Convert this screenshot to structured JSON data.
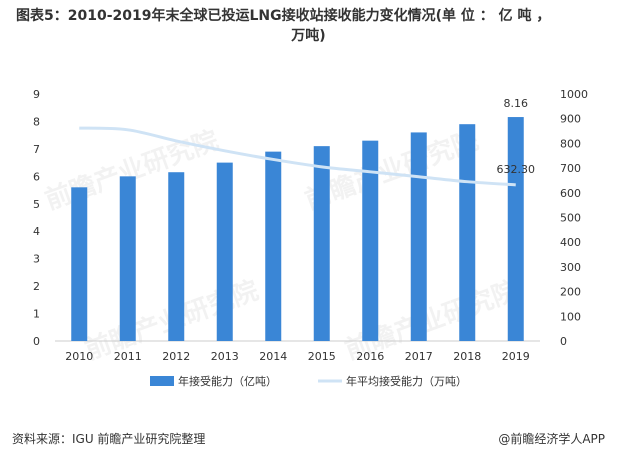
{
  "title": {
    "line1": "图表5：2010-2019年末全球已投运LNG接收站接收能力变化情况(单 位 ： 亿 吨 ，",
    "line2": "万吨)"
  },
  "source": "资料来源：IGU 前瞻产业研究院整理",
  "brand": "@前瞻经济学人APP",
  "watermark": "前瞻产业研究院",
  "colors": {
    "bar": "#3a86d6",
    "line": "#cfe3f5",
    "axis": "#999999",
    "text": "#333333"
  },
  "chart_data": {
    "type": "bar",
    "categories": [
      "2010",
      "2011",
      "2012",
      "2013",
      "2014",
      "2015",
      "2016",
      "2017",
      "2018",
      "2019"
    ],
    "series": [
      {
        "name": "年接受能力（亿吨）",
        "axis": "left",
        "type": "bar",
        "values": [
          5.6,
          6.0,
          6.15,
          6.5,
          6.9,
          7.1,
          7.3,
          7.6,
          7.9,
          8.16
        ]
      },
      {
        "name": "年平均接受能力（万吨）",
        "axis": "right",
        "type": "line",
        "values": [
          862,
          855,
          810,
          770,
          735,
          705,
          685,
          665,
          645,
          632.3
        ]
      }
    ],
    "ylim_left": [
      0,
      9
    ],
    "yticks_left": [
      0,
      1,
      2,
      3,
      4,
      5,
      6,
      7,
      8,
      9
    ],
    "ylim_right": [
      0,
      1000
    ],
    "yticks_right": [
      0,
      100,
      200,
      300,
      400,
      500,
      600,
      700,
      800,
      900,
      1000
    ],
    "data_labels": {
      "bar_last": "8.16",
      "line_last": "632.30"
    },
    "legend_position": "bottom",
    "grid": false
  }
}
